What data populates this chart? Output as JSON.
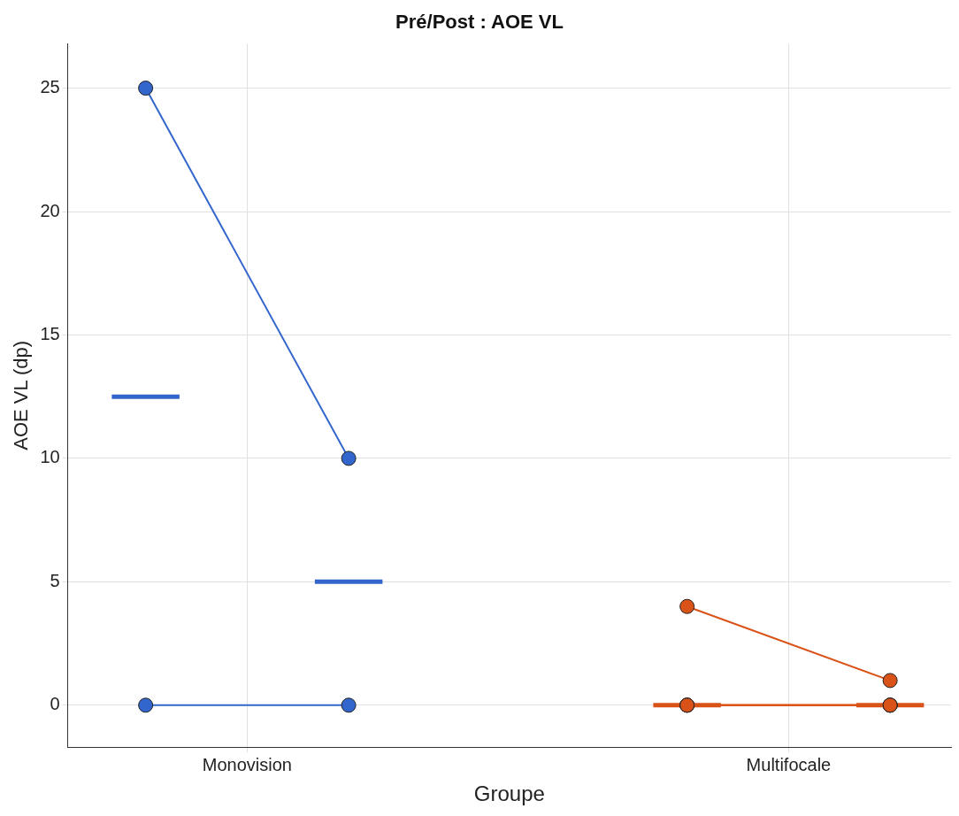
{
  "chart_data": {
    "type": "line",
    "title": "Pré/Post : AOE VL",
    "xlabel": "Groupe",
    "ylabel": "AOE VL (dp)",
    "categories": [
      null,
      null,
      null,
      null,
      "Monovision",
      null,
      null,
      null,
      null,
      null,
      null,
      null,
      null,
      null,
      null,
      null,
      null,
      null,
      null,
      null,
      "Multifocale",
      null,
      null,
      null,
      null
    ],
    "ylim": [
      -1.7,
      26.8
    ],
    "yticks": [
      0,
      5,
      10,
      15,
      20,
      25
    ],
    "grid": true,
    "legend": false,
    "marker": "circle",
    "line_style": "solid",
    "series": [
      {
        "color": "#3366cc",
        "values": [
          null,
          25,
          null,
          null,
          null,
          null,
          null,
          10,
          null,
          null,
          null,
          null,
          null,
          null,
          null,
          null,
          null,
          null,
          null,
          null,
          null,
          null,
          null,
          null,
          null
        ]
      },
      {
        "color": "#3366cc",
        "values": [
          null,
          0,
          null,
          null,
          null,
          null,
          null,
          0,
          null,
          null,
          null,
          null,
          null,
          null,
          null,
          null,
          null,
          null,
          null,
          null,
          null,
          null,
          null,
          null,
          null
        ]
      },
      {
        "color": "#3366cc",
        "marker": "none",
        "values": [
          12.5,
          null,
          12.5,
          null,
          null,
          null,
          null,
          null,
          null,
          null,
          null,
          null,
          null,
          null,
          null,
          null,
          null,
          null,
          null,
          null,
          null,
          null,
          null,
          null,
          null
        ]
      },
      {
        "color": "#3366cc",
        "marker": "none",
        "values": [
          null,
          null,
          null,
          null,
          null,
          null,
          5,
          null,
          5,
          null,
          null,
          null,
          null,
          null,
          null,
          null,
          null,
          null,
          null,
          null,
          null,
          null,
          null,
          null,
          null
        ]
      },
      {
        "color": "#d95319",
        "values": [
          null,
          null,
          null,
          null,
          null,
          null,
          null,
          null,
          null,
          null,
          null,
          null,
          null,
          null,
          null,
          null,
          null,
          4,
          null,
          null,
          null,
          null,
          null,
          1,
          null
        ]
      },
      {
        "color": "#d95319",
        "values": [
          null,
          null,
          null,
          null,
          null,
          null,
          null,
          null,
          null,
          null,
          null,
          null,
          null,
          null,
          null,
          null,
          null,
          0,
          null,
          null,
          null,
          null,
          null,
          0,
          null
        ]
      },
      {
        "color": "#d95319",
        "values": [
          null,
          null,
          null,
          null,
          null,
          null,
          null,
          null,
          null,
          null,
          null,
          null,
          null,
          null,
          null,
          null,
          null,
          0,
          null,
          null,
          null,
          null,
          null,
          0,
          null
        ]
      },
      {
        "color": "#d95319",
        "values": [
          null,
          null,
          null,
          null,
          null,
          null,
          null,
          null,
          null,
          null,
          null,
          null,
          null,
          null,
          null,
          null,
          null,
          0,
          null,
          null,
          null,
          null,
          null,
          0,
          null
        ]
      },
      {
        "color": "#d95319",
        "marker": "none",
        "values": [
          null,
          null,
          null,
          null,
          null,
          null,
          null,
          null,
          null,
          null,
          null,
          null,
          null,
          null,
          null,
          null,
          0,
          null,
          0,
          null,
          null,
          null,
          null,
          null,
          null
        ]
      },
      {
        "color": "#d95319",
        "marker": "none",
        "values": [
          null,
          null,
          null,
          null,
          null,
          null,
          null,
          null,
          null,
          null,
          null,
          null,
          null,
          null,
          null,
          null,
          null,
          null,
          null,
          null,
          null,
          null,
          0,
          null,
          0
        ]
      }
    ]
  }
}
